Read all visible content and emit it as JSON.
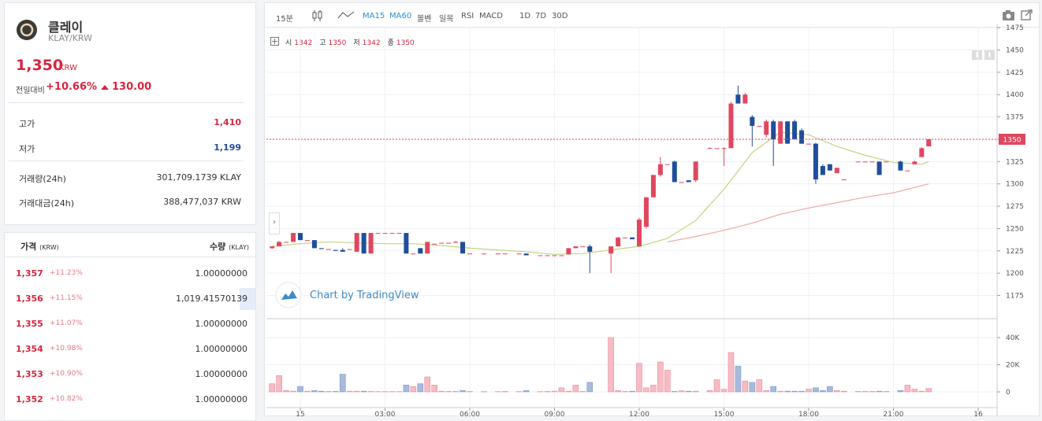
{
  "header": {
    "name": "클레이",
    "pair": "KLAY/KRW",
    "price": "1,350",
    "currency": "KRW",
    "change_label": "전일대비",
    "change_pct": "+10.66%",
    "change_abs": "130.00"
  },
  "summary": {
    "rows": [
      [
        "고가",
        "1,410"
      ],
      [
        "저가",
        "1,199"
      ],
      [
        "거래량(24h)",
        "301,709.1739 KLAY"
      ],
      [
        "거래대금(24h)",
        "388,477,037 KRW"
      ]
    ]
  },
  "orderbook": {
    "headers": [
      [
        "가격",
        "(KRW)"
      ],
      [
        "수량",
        "(KLAY)"
      ]
    ],
    "rows": [
      [
        "1,357",
        "+11.23%",
        "1.00000000"
      ],
      [
        "1,356",
        "+11.15%",
        "1,019.41570139"
      ],
      [
        "1,355",
        "+11.07%",
        "1.00000000"
      ],
      [
        "1,354",
        "+10.98%",
        "1.00000000"
      ],
      [
        "1,353",
        "+10.90%",
        "1.00000000"
      ],
      [
        "1,352",
        "+10.82%",
        "1.00000000"
      ]
    ]
  },
  "toolbar": {
    "interval": "15분",
    "indicators": [
      "볼벤",
      "일목",
      "RSI",
      "MACD"
    ],
    "ranges": [
      "1D",
      "7D",
      "30D"
    ]
  },
  "chart_data": {
    "type": "candlestick",
    "watermark": "Chart by TradingView",
    "ohlc_labels": [
      "시",
      "고",
      "저",
      "종"
    ],
    "x": [
      -1,
      -0.75,
      -0.5,
      -0.25,
      0,
      0.25,
      0.5,
      0.75,
      1,
      1.25,
      1.5,
      1.75,
      2,
      2.25,
      2.5,
      2.75,
      3,
      3.25,
      3.5,
      3.75,
      4,
      4.25,
      4.5,
      4.75,
      5,
      5.25,
      5.5,
      5.75,
      6,
      6.25,
      6.5,
      6.75,
      7,
      7.25,
      7.5,
      7.75,
      8,
      8.25,
      8.5,
      8.75,
      9,
      9.25,
      9.5,
      9.75,
      10,
      10.25,
      10.5,
      10.75,
      11,
      11.25,
      11.5,
      11.75,
      12,
      12.25,
      12.5,
      12.75,
      13,
      13.25,
      13.5,
      13.75,
      14,
      14.25,
      14.5,
      14.75,
      15,
      15.25,
      15.5,
      15.75,
      16,
      16.25,
      16.5,
      16.75,
      17,
      17.25,
      17.5,
      17.75,
      18,
      18.25,
      18.5,
      18.75,
      19,
      19.25,
      19.5,
      19.75,
      20,
      20.25,
      20.5,
      20.75,
      21,
      21.25,
      21.5,
      21.75,
      22,
      22.25
    ],
    "open": [
      1228,
      1230,
      1235,
      1235,
      1245,
      1237,
      1237,
      1228,
      1227,
      1226,
      1226,
      1227,
      1224,
      1245,
      1222,
      1245,
      1245,
      1245,
      1245,
      1245,
      1222,
      1228,
      1222,
      1233,
      1234,
      1234,
      1234,
      1235,
      1222,
      null,
      1222,
      null,
      1222,
      1222,
      null,
      1222,
      1222,
      null,
      1220,
      1220,
      1220,
      1220,
      1221,
      1228,
      1230,
      1230,
      null,
      null,
      1222,
      1230,
      1240,
      1240,
      1230,
      1252,
      1285,
      1310,
      1322,
      1325,
      1302,
      1304,
      1304,
      null,
      1340,
      1340,
      1340,
      1340,
      1400,
      1390,
      1375,
      1365,
      1355,
      1370,
      1345,
      1370,
      1370,
      1360,
      1345,
      1345,
      1320,
      1322,
      1312,
      1305,
      null,
      1325,
      1325,
      1325,
      1325,
      1325,
      null,
      1325,
      1315,
      1322,
      1330,
      1342
    ],
    "high": [
      1230,
      1236,
      1235,
      1245,
      1245,
      1237,
      1237,
      1228,
      1227,
      1226,
      1228,
      1227,
      1245,
      1245,
      1245,
      1245,
      1245,
      1245,
      1245,
      1245,
      1222,
      1228,
      1235,
      1233,
      1234,
      1234,
      1236,
      1235,
      1222,
      null,
      1222,
      null,
      1222,
      1222,
      null,
      1222,
      1222,
      null,
      1220,
      1220,
      1220,
      1220,
      1228,
      1230,
      1230,
      1232,
      null,
      null,
      1230,
      1240,
      1240,
      1240,
      1262,
      1285,
      1310,
      1330,
      1322,
      1326,
      1302,
      1304,
      1325,
      null,
      1341,
      1340,
      1341,
      1392,
      1410,
      1402,
      1377,
      1365,
      1372,
      1372,
      1370,
      1370,
      1372,
      1362,
      1345,
      1346,
      1322,
      1322,
      1318,
      1305,
      null,
      1325,
      1325,
      1325,
      1325,
      1325,
      null,
      1326,
      1315,
      1326,
      1341,
      1350
    ],
    "low": [
      1227,
      1230,
      1235,
      1235,
      1237,
      1237,
      1228,
      1227,
      1227,
      1225,
      1224,
      1227,
      1224,
      1222,
      1222,
      1245,
      1245,
      1245,
      1245,
      1222,
      1222,
      1222,
      1222,
      1233,
      1234,
      1234,
      1234,
      1222,
      1222,
      null,
      1222,
      null,
      1222,
      1222,
      null,
      1222,
      1220,
      null,
      1220,
      1220,
      1220,
      1220,
      1221,
      1228,
      1230,
      1200,
      null,
      null,
      1200,
      1230,
      1240,
      1238,
      1230,
      1250,
      1285,
      1308,
      1322,
      1302,
      1302,
      1302,
      1302,
      null,
      1340,
      1340,
      1320,
      1340,
      1390,
      1390,
      1342,
      1365,
      1352,
      1320,
      1345,
      1345,
      1350,
      1345,
      1345,
      1300,
      1310,
      1315,
      1312,
      1305,
      null,
      1325,
      1325,
      1325,
      1310,
      1325,
      null,
      1315,
      1315,
      1322,
      1330,
      1342
    ],
    "close": [
      1230,
      1235,
      1235,
      1245,
      1237,
      1237,
      1228,
      1227,
      1227,
      1225,
      1224,
      1227,
      1245,
      1222,
      1245,
      1245,
      1245,
      1245,
      1245,
      1222,
      1222,
      1222,
      1235,
      1233,
      1234,
      1234,
      1235,
      1222,
      1222,
      null,
      1222,
      null,
      1222,
      1222,
      null,
      1222,
      1220,
      null,
      1220,
      1220,
      1220,
      1220,
      1228,
      1230,
      1230,
      1224,
      null,
      null,
      1230,
      1240,
      1240,
      1238,
      1260,
      1285,
      1310,
      1322,
      1322,
      1302,
      1302,
      1302,
      1325,
      null,
      1340,
      1340,
      1340,
      1390,
      1390,
      1400,
      1365,
      1365,
      1370,
      1350,
      1370,
      1345,
      1350,
      1345,
      1345,
      1305,
      1310,
      1315,
      1318,
      1305,
      null,
      1325,
      1325,
      1325,
      1310,
      1325,
      null,
      1315,
      1315,
      1325,
      1340,
      1350
    ],
    "volume": [
      6000,
      12000,
      1000,
      500,
      4000,
      500,
      1000,
      500,
      300,
      300,
      13000,
      500,
      500,
      500,
      300,
      200,
      200,
      200,
      200,
      5000,
      4000,
      6000,
      11000,
      5000,
      500,
      300,
      300,
      1000,
      300,
      null,
      200,
      null,
      200,
      300,
      null,
      200,
      1000,
      null,
      200,
      300,
      500,
      3000,
      500,
      5000,
      300,
      7000,
      null,
      null,
      40000,
      1000,
      300,
      500,
      21000,
      3000,
      5000,
      22000,
      16000,
      300,
      800,
      500,
      500,
      null,
      1000,
      9000,
      2000,
      29000,
      19000,
      8000,
      7000,
      9000,
      1000,
      4000,
      500,
      500,
      500,
      500,
      2000,
      3000,
      1000,
      4000,
      1000,
      500,
      null,
      300,
      300,
      300,
      500,
      300,
      null,
      1000,
      5000,
      2000,
      500,
      2500
    ],
    "up_color": "#e0475f",
    "down_color": "#1f4e9c",
    "volume_up_color": "#f6bcc5",
    "volume_down_color": "#a7bbdc",
    "ma": [
      {
        "name": "MA15",
        "color": "#c5d384",
        "x": [
          -1,
          0,
          1,
          2,
          3,
          4,
          5,
          6,
          7,
          8,
          9,
          10,
          11,
          12,
          13,
          14,
          15,
          16,
          17,
          18,
          19,
          20,
          21,
          22,
          22.25
        ],
        "values": [
          1230,
          1233,
          1235,
          1234,
          1233,
          1233,
          1231,
          1228,
          1226,
          1224,
          1221,
          1222,
          1226,
          1230,
          1239,
          1259,
          1294,
          1335,
          1358,
          1355,
          1342,
          1332,
          1324,
          1322,
          1325
        ]
      },
      {
        "name": "MA60",
        "color": "#f2a7a3",
        "x": [
          13,
          14,
          15,
          16,
          17,
          18,
          19,
          20,
          21,
          22.25
        ],
        "values": [
          1235,
          1241,
          1248,
          1256,
          1266,
          1273,
          1279,
          1285,
          1290,
          1300
        ]
      }
    ],
    "last_price": 1350,
    "xlim": [
      -1.2,
      24.67
    ],
    "xticks": [
      {
        "value": 0,
        "label": "15"
      },
      {
        "value": 3,
        "label": "03:00"
      },
      {
        "value": 6,
        "label": "06:00"
      },
      {
        "value": 9,
        "label": "09:00"
      },
      {
        "value": 12,
        "label": "12:00"
      },
      {
        "value": 15,
        "label": "15:00"
      },
      {
        "value": 18,
        "label": "18:00"
      },
      {
        "value": 21,
        "label": "21:00"
      },
      {
        "value": 24,
        "label": "16"
      }
    ],
    "ylim": [
      1149,
      1476
    ],
    "yticks": [
      1175,
      1200,
      1225,
      1250,
      1275,
      1300,
      1325,
      1350,
      1375,
      1400,
      1425,
      1450,
      1475
    ],
    "volume_lim": [
      -11600,
      53900
    ],
    "volume_ticks": [
      0,
      {
        "value": 20000,
        "label": "20K"
      },
      {
        "value": 40000,
        "label": "40K"
      }
    ],
    "grid": true
  }
}
